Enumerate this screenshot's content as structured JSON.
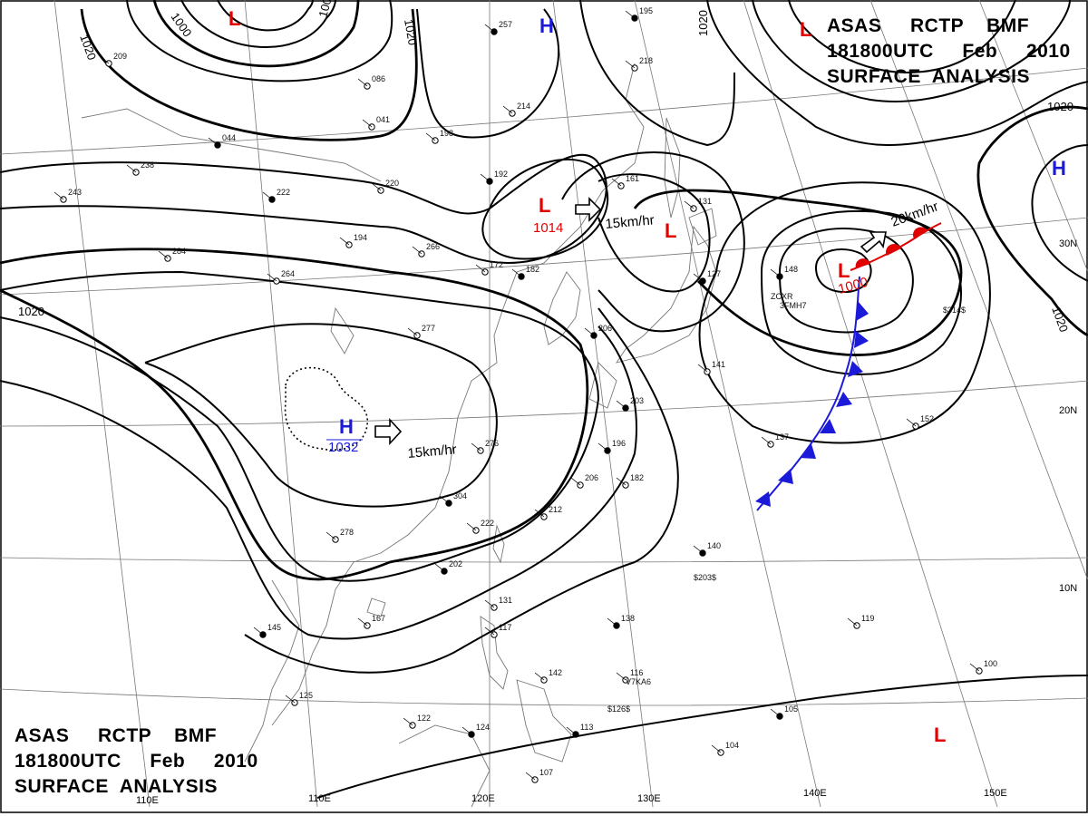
{
  "header_top": {
    "line1": "ASAS     RCTP    BMF",
    "line2": "181800UTC     Feb     2010",
    "line3": "SURFACE  ANALYSIS"
  },
  "header_bottom": {
    "line1": "ASAS     RCTP    BMF",
    "line2": "181800UTC     Feb     2010",
    "line3": "SURFACE  ANALYSIS"
  },
  "colors": {
    "high": "#1a1ad8",
    "low": "#e00000",
    "cold_front": "#1a1ad8",
    "warm_front": "#e00000",
    "isobar": "#000000",
    "grid": "#777777"
  },
  "longitude_labels": [
    "110E",
    "110E",
    "120E",
    "130E",
    "140E",
    "150E"
  ],
  "latitude_labels": [
    "30N",
    "20N",
    "10N"
  ],
  "isobar_labels": [
    "1020",
    "1000",
    "1000",
    "1020",
    "1020",
    "1020",
    "1020",
    "1020"
  ],
  "pressure_centers": {
    "high_siberia": {
      "letter": "H",
      "value": "1032"
    },
    "high_north": {
      "letter": "H"
    },
    "high_east": {
      "letter": "H"
    },
    "low_nw": {
      "letter": "L"
    },
    "low_ne": {
      "letter": "L"
    },
    "low_central": {
      "letter": "L",
      "value": "1014"
    },
    "low_japan": {
      "letter": "L"
    },
    "low_east": {
      "letter": "L",
      "value": "1000"
    },
    "low_south": {
      "letter": "L"
    }
  },
  "motion_labels": {
    "high_motion": "15km/hr",
    "low_central_motion": "15km/hr",
    "low_east_motion": "20km/hr"
  },
  "station_numbers": [
    "257",
    "218",
    "214",
    "192",
    "161",
    "198",
    "222",
    "220",
    "194",
    "182",
    "172",
    "264",
    "206",
    "284",
    "276",
    "196",
    "206",
    "182",
    "203",
    "212",
    "222",
    "202",
    "278",
    "167",
    "145",
    "125",
    "122",
    "124",
    "131",
    "117",
    "138",
    "142",
    "116",
    "113",
    "107",
    "104",
    "105",
    "100",
    "119",
    "140",
    "152",
    "137",
    "127",
    "141",
    "131",
    "148",
    "041",
    "086",
    "044",
    "238",
    "243",
    "304",
    "277",
    "266",
    "195",
    "209"
  ],
  "station_ids": [
    "3FMH7",
    "ZCXR",
    "V7KA6",
    "$126$",
    "$203$",
    "$314$"
  ]
}
